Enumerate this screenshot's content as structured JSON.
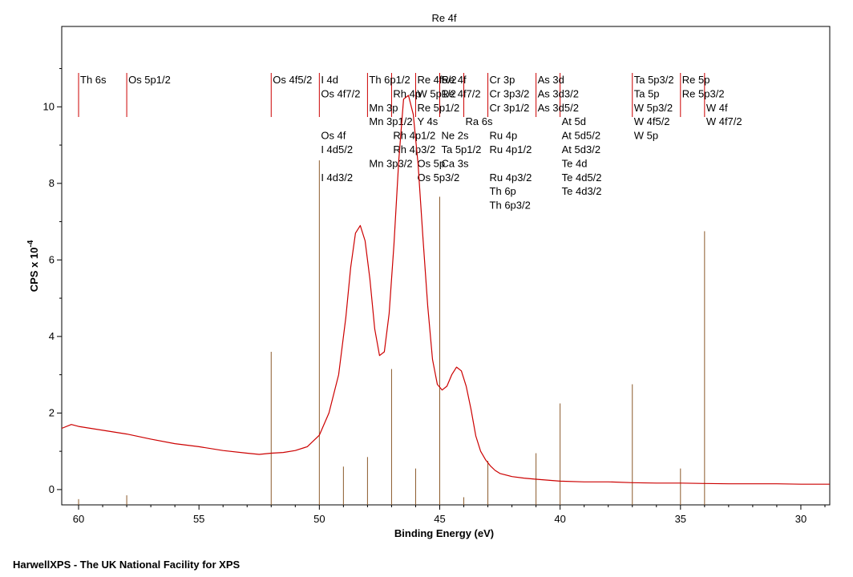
{
  "chart_data": {
    "type": "line",
    "title": "Re 4f",
    "xlabel": "Binding Energy (eV)",
    "ylabel_main": "CPS x 10",
    "ylabel_exp": "-4",
    "x_reversed": true,
    "xlim": [
      60.7,
      28.8
    ],
    "ylim": [
      -0.4,
      12.1
    ],
    "x_ticks": [
      60,
      55,
      50,
      45,
      40,
      35,
      30
    ],
    "y_ticks": [
      0,
      2,
      4,
      6,
      8,
      10
    ],
    "grid": false,
    "series": [
      {
        "color": "#cc0000",
        "x": [
          60.7,
          60.3,
          60.0,
          59.0,
          58.0,
          57.0,
          56.0,
          55.0,
          54.0,
          53.0,
          52.5,
          52.0,
          51.5,
          51.0,
          50.5,
          50.0,
          49.6,
          49.2,
          48.9,
          48.7,
          48.5,
          48.3,
          48.1,
          47.9,
          47.7,
          47.5,
          47.3,
          47.1,
          46.9,
          46.7,
          46.5,
          46.3,
          46.1,
          45.9,
          45.7,
          45.5,
          45.3,
          45.1,
          44.9,
          44.7,
          44.5,
          44.3,
          44.1,
          43.9,
          43.7,
          43.5,
          43.3,
          43.1,
          42.9,
          42.7,
          42.5,
          42.0,
          41.5,
          41.0,
          40.0,
          39.0,
          38.0,
          37.0,
          36.0,
          35.0,
          34.0,
          33.0,
          32.0,
          31.0,
          30.0,
          28.8
        ],
        "y": [
          1.6,
          1.7,
          1.65,
          1.55,
          1.45,
          1.32,
          1.2,
          1.12,
          1.02,
          0.95,
          0.92,
          0.95,
          0.97,
          1.02,
          1.12,
          1.42,
          2.0,
          3.0,
          4.5,
          5.8,
          6.7,
          6.9,
          6.5,
          5.5,
          4.2,
          3.5,
          3.6,
          4.6,
          6.4,
          8.6,
          10.2,
          10.3,
          9.8,
          8.5,
          6.6,
          4.8,
          3.4,
          2.75,
          2.6,
          2.7,
          3.0,
          3.2,
          3.1,
          2.7,
          2.1,
          1.4,
          1.0,
          0.78,
          0.62,
          0.5,
          0.42,
          0.34,
          0.3,
          0.27,
          0.22,
          0.2,
          0.2,
          0.18,
          0.17,
          0.17,
          0.16,
          0.15,
          0.15,
          0.15,
          0.14,
          0.14
        ]
      }
    ],
    "reference_lines": [
      {
        "x": 60.0,
        "h": -0.25,
        "labels": [
          "Th 6s"
        ]
      },
      {
        "x": 58.0,
        "h": -0.15,
        "labels": [
          "Os 5p1/2"
        ]
      },
      {
        "x": 52.0,
        "h": 3.6,
        "labels": [
          "Os 4f5/2"
        ]
      },
      {
        "x": 50.0,
        "h": 8.6,
        "labels": [
          "I 4d",
          "Os 4f7/2",
          "",
          "",
          "Os 4f",
          "I 4d5/2",
          "",
          "I 4d3/2"
        ]
      },
      {
        "x": 49.0,
        "h": 0.6,
        "labels": []
      },
      {
        "x": 48.0,
        "h": 0.85,
        "labels": [
          "Th 6p1/2",
          "",
          "Mn 3p",
          "Mn 3p1/2",
          "",
          "",
          "Mn 3p3/2"
        ]
      },
      {
        "x": 47.0,
        "h": 3.15,
        "labels": [
          "",
          "Rh 4p",
          "",
          "",
          "Rh 4p1/2",
          "Rh 4p3/2"
        ]
      },
      {
        "x": 46.0,
        "h": 0.55,
        "labels": [
          "Re 4f5/2",
          "W 5p1/2",
          "Re 5p1/2",
          "Y 4s",
          "",
          "",
          "Os 5p",
          "Os 5p3/2"
        ]
      },
      {
        "x": 45.0,
        "h": 7.65,
        "labels": [
          "Re 4f",
          "Re 4f7/2",
          "",
          "",
          "Ne 2s",
          "Ta 5p1/2",
          "Ca 3s"
        ]
      },
      {
        "x": 44.0,
        "h": -0.2,
        "labels": [
          "",
          "",
          "",
          "Ra 6s"
        ]
      },
      {
        "x": 43.0,
        "h": 0.75,
        "labels": [
          "Cr 3p",
          "Cr 3p3/2",
          "Cr 3p1/2",
          "",
          "Ru 4p",
          "Ru 4p1/2",
          "",
          "Ru 4p3/2",
          "Th 6p",
          "Th 6p3/2"
        ]
      },
      {
        "x": 41.0,
        "h": 0.95,
        "labels": [
          "As 3d",
          "As 3d3/2",
          "As 3d5/2"
        ]
      },
      {
        "x": 40.0,
        "h": 2.25,
        "labels": [
          "",
          "",
          "",
          "At 5d",
          "At 5d5/2",
          "At 5d3/2",
          "Te 4d",
          "Te 4d5/2",
          "Te 4d3/2"
        ]
      },
      {
        "x": 37.0,
        "h": 2.75,
        "labels": [
          "Ta 5p3/2",
          "Ta 5p",
          "W 5p3/2",
          "W 4f5/2",
          "W 5p"
        ]
      },
      {
        "x": 35.0,
        "h": 0.55,
        "labels": [
          "Re 5p",
          "Re 5p3/2"
        ]
      },
      {
        "x": 34.0,
        "h": 6.75,
        "labels": [
          "",
          "",
          "W 4f",
          "W 4f7/2"
        ]
      }
    ]
  },
  "footer": "HarwellXPS - The UK National Facility for XPS"
}
